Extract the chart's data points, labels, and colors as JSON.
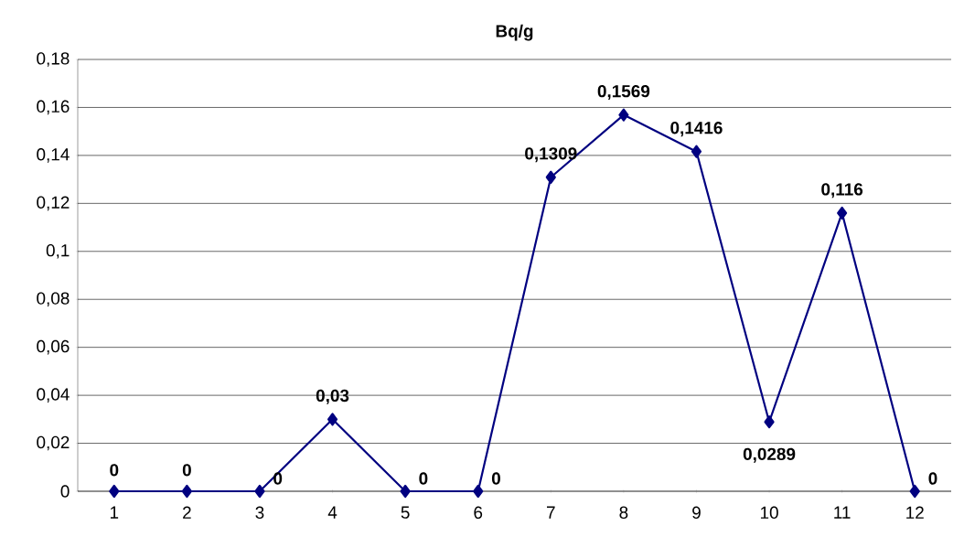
{
  "chart_data": {
    "type": "line",
    "title": "Bq/g",
    "categories": [
      "1",
      "2",
      "3",
      "4",
      "5",
      "6",
      "7",
      "8",
      "9",
      "10",
      "11",
      "12"
    ],
    "series": [
      {
        "color": "#000080",
        "values": [
          0,
          0,
          0,
          0.03,
          0,
          0,
          0.1309,
          0.1569,
          0.1416,
          0.0289,
          0.116,
          0
        ],
        "value_labels": [
          "0",
          "0",
          "0",
          "0,03",
          "0",
          "0",
          "0,1309",
          "0,1569",
          "0,1416",
          "0,0289",
          "0,116",
          "0"
        ]
      }
    ],
    "ylim": [
      0,
      0.18
    ],
    "yticks": [
      0,
      {
        "value": 0.02,
        "label": "0,02"
      },
      {
        "value": 0.04,
        "label": "0,04"
      },
      {
        "value": 0.06,
        "label": "0,06"
      },
      {
        "value": 0.08,
        "label": "0,08"
      },
      {
        "value": 0.1,
        "label": "0,1"
      },
      {
        "value": 0.12,
        "label": "0,12"
      },
      {
        "value": 0.14,
        "label": "0,14"
      },
      {
        "value": 0.16,
        "label": "0,16"
      },
      {
        "value": 0.18,
        "label": "0,18"
      }
    ],
    "grid": "y",
    "marker": "diamond",
    "line_style": "solid"
  }
}
